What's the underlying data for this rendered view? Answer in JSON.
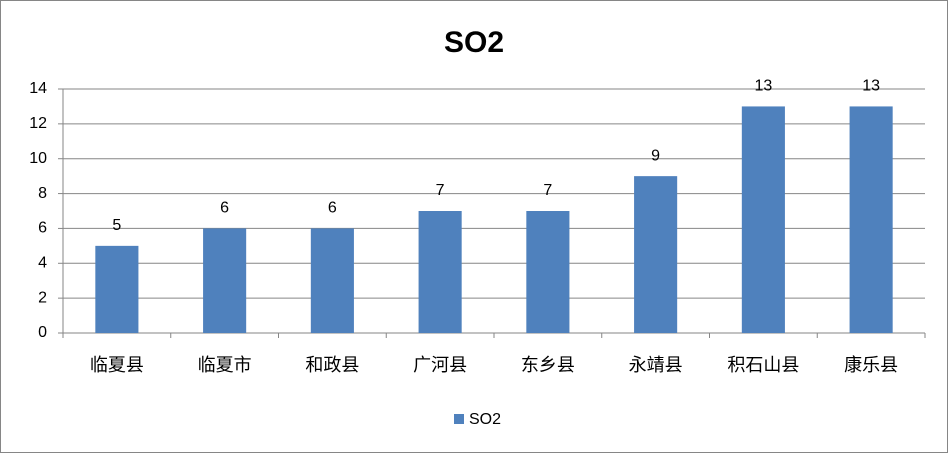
{
  "chart_data": {
    "type": "bar",
    "title": "SO2",
    "categories": [
      "临夏县",
      "临夏市",
      "和政县",
      "广河县",
      "东乡县",
      "永靖县",
      "积石山县",
      "康乐县"
    ],
    "series": [
      {
        "name": "SO2",
        "color": "#4f81bd",
        "values": [
          5,
          6,
          6,
          7,
          7,
          9,
          13,
          13
        ]
      }
    ],
    "ylim": [
      0,
      14
    ],
    "yticks": [
      0,
      2,
      4,
      6,
      8,
      10,
      12,
      14
    ],
    "grid": true,
    "legend": "bottom"
  }
}
